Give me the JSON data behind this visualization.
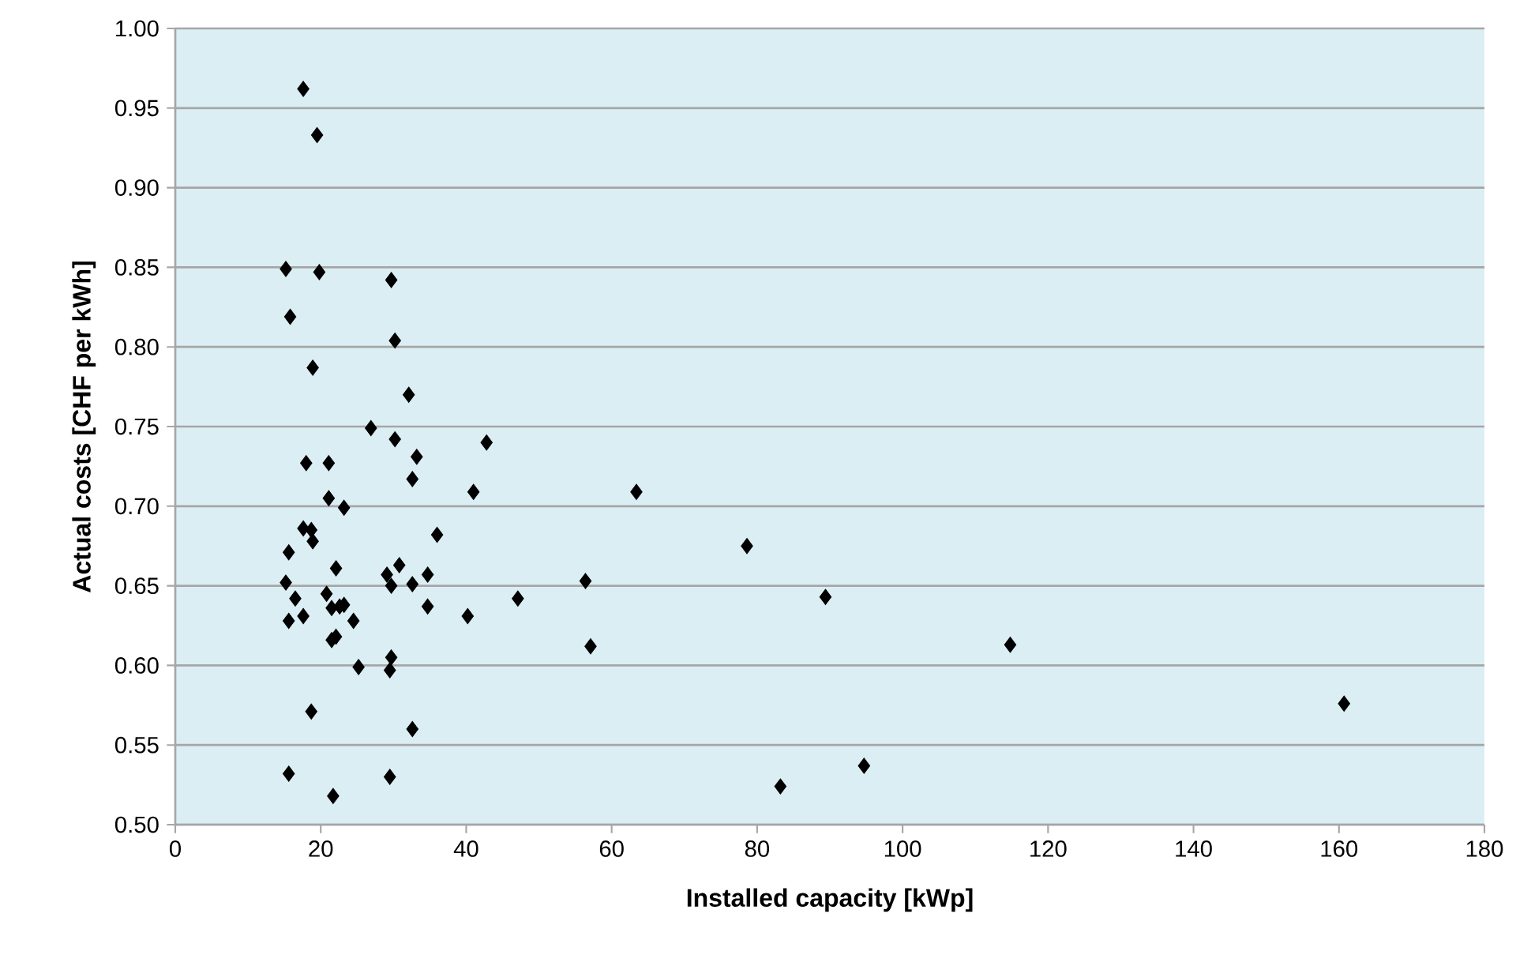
{
  "chart_data": {
    "type": "scatter",
    "xlabel": "Installed capacity [kWp]",
    "ylabel": "Actual costs [CHF per kWh]",
    "x": [
      17.6,
      19.5,
      15.2,
      19.8,
      29.7,
      15.8,
      30.2,
      18.9,
      32.1,
      26.9,
      30.2,
      33.2,
      18.0,
      21.1,
      32.6,
      21.1,
      23.2,
      17.6,
      18.7,
      18.9,
      36.0,
      15.6,
      22.1,
      30.8,
      29.1,
      34.7,
      15.2,
      29.7,
      32.6,
      16.5,
      20.8,
      21.5,
      22.6,
      23.2,
      34.7,
      15.6,
      17.6,
      24.5,
      21.5,
      22.1,
      25.2,
      29.7,
      29.5,
      18.7,
      32.6,
      15.6,
      29.5,
      21.7,
      42.8,
      41.0,
      56.4,
      47.1,
      40.2,
      57.1,
      63.4,
      78.6,
      89.4,
      114.8,
      160.7,
      83.2,
      94.7
    ],
    "values": [
      0.962,
      0.933,
      0.849,
      0.847,
      0.842,
      0.819,
      0.804,
      0.787,
      0.77,
      0.749,
      0.742,
      0.731,
      0.727,
      0.727,
      0.717,
      0.705,
      0.699,
      0.686,
      0.685,
      0.678,
      0.682,
      0.671,
      0.661,
      0.663,
      0.657,
      0.657,
      0.652,
      0.65,
      0.651,
      0.642,
      0.645,
      0.636,
      0.637,
      0.638,
      0.637,
      0.628,
      0.631,
      0.628,
      0.616,
      0.618,
      0.599,
      0.605,
      0.597,
      0.571,
      0.56,
      0.532,
      0.53,
      0.518,
      0.74,
      0.709,
      0.653,
      0.642,
      0.631,
      0.612,
      0.709,
      0.675,
      0.643,
      0.613,
      0.576,
      0.524,
      0.537
    ],
    "color": "#000000",
    "marker": "diamond",
    "xlim": [
      0,
      180
    ],
    "xticks": [
      0,
      20,
      40,
      60,
      80,
      100,
      120,
      140,
      160,
      180
    ],
    "ylim": [
      0.5,
      1.0
    ],
    "yticks": [
      {
        "value": 0.5,
        "label": "0.50"
      },
      {
        "value": 0.55,
        "label": "0.55"
      },
      {
        "value": 0.6,
        "label": "0.60"
      },
      {
        "value": 0.65,
        "label": "0.65"
      },
      {
        "value": 0.7,
        "label": "0.70"
      },
      {
        "value": 0.75,
        "label": "0.75"
      },
      {
        "value": 0.8,
        "label": "0.80"
      },
      {
        "value": 0.85,
        "label": "0.85"
      },
      {
        "value": 0.9,
        "label": "0.90"
      },
      {
        "value": 0.95,
        "label": "0.95"
      },
      {
        "value": 1.0,
        "label": "1.00"
      }
    ],
    "grid": "y"
  }
}
